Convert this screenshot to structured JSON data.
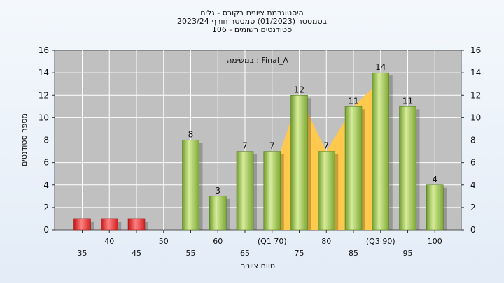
{
  "chart_data": {
    "type": "bar",
    "title_lines": [
      "היסטוגרמת ציונים בקורס - גלים",
      "בסמסטר  (01/2023)  סמסטר חורף  2023/24",
      "סטודנטים רשומים - 106"
    ],
    "legend_text": "במשימה : Final_A",
    "ylabel": "מספר סטודנטים",
    "xlabel": "טווח ציונים",
    "ylim": [
      0,
      16
    ],
    "yticks": [
      0,
      2,
      4,
      6,
      8,
      10,
      12,
      14,
      16
    ],
    "categories": [
      "35",
      "40",
      "45",
      "50",
      "55",
      "60",
      "65",
      "(Q1 70)",
      "75",
      "80",
      "85",
      "(Q3 90)",
      "95",
      "100"
    ],
    "values": [
      1,
      1,
      1,
      0,
      8,
      3,
      7,
      7,
      12,
      7,
      11,
      14,
      11,
      4
    ],
    "value_labels": [
      "",
      "",
      "",
      "",
      "8",
      "3",
      "7",
      "7",
      "12",
      "7",
      "11",
      "14",
      "11",
      "4"
    ],
    "bar_kinds": [
      "fail",
      "fail",
      "fail",
      "none",
      "pass",
      "pass",
      "pass",
      "pass",
      "pass",
      "pass",
      "pass",
      "pass",
      "pass",
      "pass"
    ],
    "iqr_band": {
      "from_category": "(Q1 70)",
      "to_category": "(Q3 90)",
      "color": "#ffc94d"
    },
    "grid": true,
    "colors": {
      "plot_bg": "#c0c0c0",
      "grid": "#ffffff",
      "pass_light": "#d6ec9a",
      "pass_dark": "#6f9b2c",
      "fail_light": "#ff8080",
      "fail_dark": "#c41616"
    }
  }
}
